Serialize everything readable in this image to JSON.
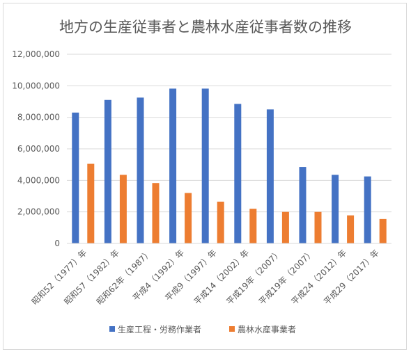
{
  "chart_data": {
    "type": "bar",
    "title": "地方の生産従事者と農林水産従事者数の推移",
    "xlabel": "",
    "ylabel": "",
    "categories": [
      "昭和52（1977）年",
      "昭和57（1982）年",
      "昭和62年（1987）",
      "平成4（1992）年",
      "平成9（1997）年",
      "平成14（2002）年",
      "平成19年（2007）",
      "平成19年（2007）",
      "平成24（2012）年",
      "平成29（2017）年"
    ],
    "series": [
      {
        "name": "生産工程・労務作業者",
        "color": "#4472c4",
        "values": [
          8300000,
          9100000,
          9250000,
          9820000,
          9820000,
          8850000,
          8500000,
          4850000,
          4350000,
          4250000
        ]
      },
      {
        "name": "農林水産事業者",
        "color": "#ed7d31",
        "values": [
          5050000,
          4350000,
          3830000,
          3200000,
          2650000,
          2200000,
          2000000,
          2000000,
          1780000,
          1550000
        ]
      }
    ],
    "ylim": [
      0,
      12000000
    ],
    "yticks": [
      0,
      2000000,
      4000000,
      6000000,
      8000000,
      10000000,
      12000000
    ],
    "ytick_labels": [
      "0",
      "2,000,000",
      "4,000,000",
      "6,000,000",
      "8,000,000",
      "10,000,000",
      "12,000,000"
    ],
    "grid": true,
    "legend_position": "bottom",
    "gridline_color": "#d9d9d9",
    "text_color": "#595959"
  }
}
